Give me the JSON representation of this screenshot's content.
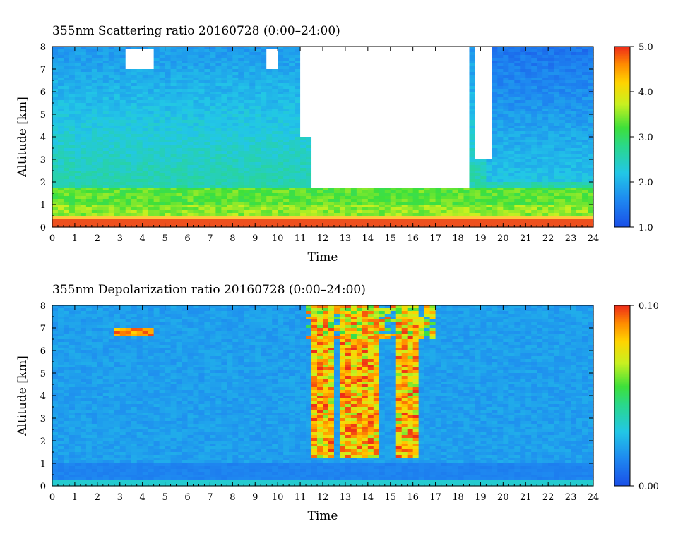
{
  "chart_data": [
    {
      "type": "heatmap",
      "title": "355nm Scattering ratio  20160728 (0:00–24:00)",
      "xlabel": "Time",
      "ylabel": "Altitude [km]",
      "xlim": [
        0,
        24
      ],
      "ylim": [
        0,
        8
      ],
      "x_ticks": [
        "0",
        "1",
        "2",
        "3",
        "4",
        "5",
        "6",
        "7",
        "8",
        "9",
        "10",
        "11",
        "12",
        "13",
        "14",
        "15",
        "16",
        "17",
        "18",
        "19",
        "20",
        "21",
        "22",
        "23",
        "24"
      ],
      "y_ticks": [
        "0",
        "1",
        "2",
        "3",
        "4",
        "5",
        "6",
        "7",
        "8"
      ],
      "colorbar": {
        "range": [
          1.0,
          5.0
        ],
        "ticks": [
          "1.0",
          "2.0",
          "3.0",
          "4.0",
          "5.0"
        ]
      }
    },
    {
      "type": "heatmap",
      "title": "355nm Depolarization ratio  20160728 (0:00–24:00)",
      "xlabel": "Time",
      "ylabel": "Altitude [km]",
      "xlim": [
        0,
        24
      ],
      "ylim": [
        0,
        8
      ],
      "x_ticks": [
        "0",
        "1",
        "2",
        "3",
        "4",
        "5",
        "6",
        "7",
        "8",
        "9",
        "10",
        "11",
        "12",
        "13",
        "14",
        "15",
        "16",
        "17",
        "18",
        "19",
        "20",
        "21",
        "22",
        "23",
        "24"
      ],
      "y_ticks": [
        "0",
        "1",
        "2",
        "3",
        "4",
        "5",
        "6",
        "7",
        "8"
      ],
      "colorbar": {
        "range": [
          0.0,
          0.1
        ],
        "ticks": [
          "0.00",
          "0.10"
        ]
      }
    }
  ]
}
